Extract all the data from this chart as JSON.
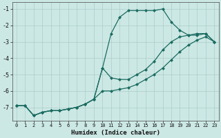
{
  "xlabel": "Humidex (Indice chaleur)",
  "bg_color": "#cce8e4",
  "grid_color": "#aaccca",
  "line_color": "#1a6b60",
  "xlim": [
    -0.5,
    23.5
  ],
  "ylim": [
    -7.8,
    -0.6
  ],
  "yticks": [
    -7,
    -6,
    -5,
    -4,
    -3,
    -2,
    -1
  ],
  "xticks": [
    0,
    1,
    2,
    3,
    4,
    5,
    6,
    7,
    8,
    9,
    10,
    11,
    12,
    13,
    14,
    15,
    16,
    17,
    18,
    19,
    20,
    21,
    22,
    23
  ],
  "line1_x": [
    0,
    1,
    2,
    3,
    4,
    5,
    6,
    7,
    8,
    9,
    10,
    11,
    12,
    13,
    14,
    15,
    16,
    17,
    18,
    19,
    20,
    21,
    22,
    23
  ],
  "line1_y": [
    -6.9,
    -6.9,
    -7.5,
    -7.3,
    -7.2,
    -7.2,
    -7.1,
    -7.0,
    -6.8,
    -6.5,
    -4.6,
    -2.5,
    -1.5,
    -1.1,
    -1.1,
    -1.1,
    -1.1,
    -1.0,
    -1.8,
    -2.3,
    -2.6,
    -2.6,
    -2.5,
    -3.0
  ],
  "line2_x": [
    0,
    1,
    2,
    3,
    4,
    5,
    6,
    7,
    8,
    9,
    10,
    11,
    12,
    13,
    14,
    15,
    16,
    17,
    18,
    19,
    20,
    21,
    22,
    23
  ],
  "line2_y": [
    -6.9,
    -6.9,
    -7.5,
    -7.3,
    -7.2,
    -7.2,
    -7.1,
    -7.0,
    -6.8,
    -6.5,
    -4.6,
    -5.2,
    -5.3,
    -5.3,
    -5.0,
    -4.7,
    -4.2,
    -3.5,
    -3.0,
    -2.7,
    -2.6,
    -2.5,
    -2.5,
    -3.0
  ],
  "line3_x": [
    0,
    1,
    2,
    3,
    4,
    5,
    6,
    7,
    8,
    9,
    10,
    11,
    12,
    13,
    14,
    15,
    16,
    17,
    18,
    19,
    20,
    21,
    22,
    23
  ],
  "line3_y": [
    -6.9,
    -6.9,
    -7.5,
    -7.3,
    -7.2,
    -7.2,
    -7.1,
    -7.0,
    -6.8,
    -6.5,
    -6.0,
    -6.0,
    -5.9,
    -5.8,
    -5.6,
    -5.3,
    -5.0,
    -4.6,
    -4.1,
    -3.6,
    -3.2,
    -2.9,
    -2.7,
    -3.0
  ]
}
